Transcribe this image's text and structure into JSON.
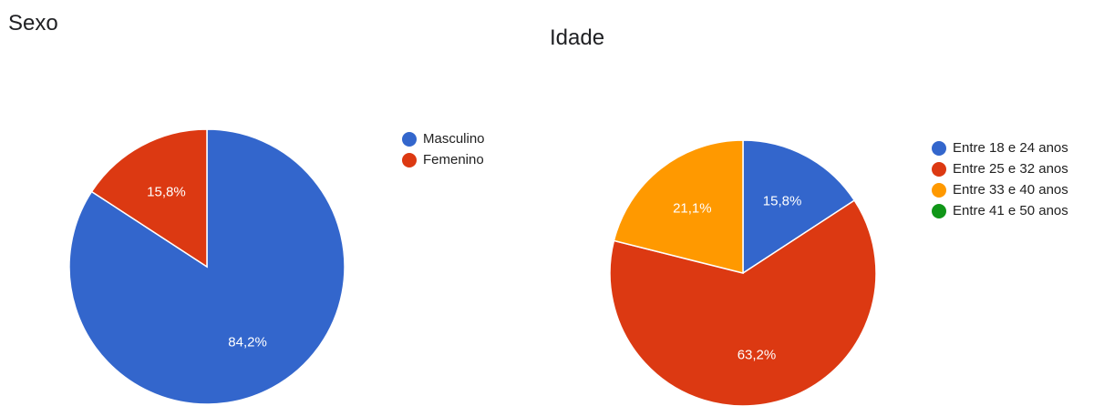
{
  "chart_data": [
    {
      "type": "pie",
      "title": "Sexo",
      "categories": [
        "Masculino",
        "Femenino"
      ],
      "values": [
        84.2,
        15.8
      ],
      "labels": [
        "84,2%",
        "15,8%"
      ],
      "colors": [
        "#3366CC",
        "#DC3912"
      ],
      "legend_position": "right"
    },
    {
      "type": "pie",
      "title": "Idade",
      "categories": [
        "Entre 18 e 24 anos",
        "Entre 25 e 32 anos",
        "Entre 33 e 40 anos",
        "Entre 41 e 50 anos"
      ],
      "values": [
        15.8,
        63.2,
        21.1,
        0
      ],
      "labels": [
        "15,8%",
        "63,2%",
        "21,1%",
        ""
      ],
      "colors": [
        "#3366CC",
        "#DC3912",
        "#FF9900",
        "#109618"
      ],
      "legend_position": "right"
    }
  ]
}
